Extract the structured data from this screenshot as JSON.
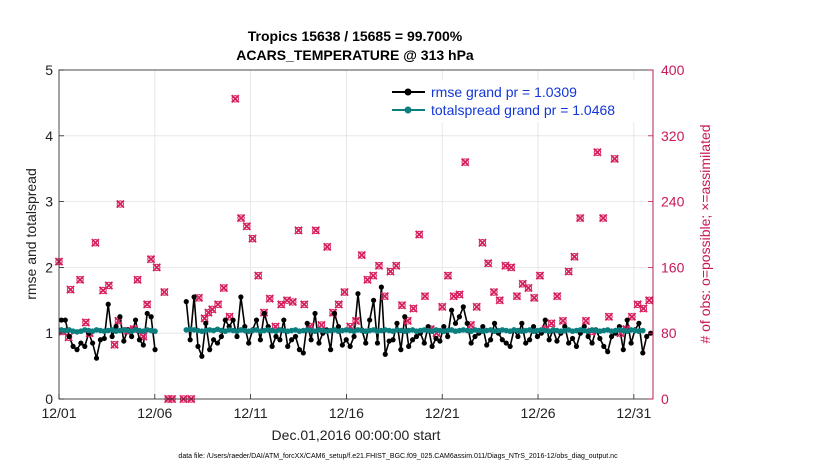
{
  "chart_data": {
    "type": "line",
    "title_line1": "Tropics 15638 / 15685 = 99.700%",
    "title_line2": "ACARS_TEMPERATURE @ 313 hPa",
    "xlabel": "Dec.01,2016 00:00:00 start",
    "ylabel_left": "rmse and totalspread",
    "ylabel_right": "# of obs: o=possible; ×=assimilated",
    "footer": "data file: /Users/raeder/DAI/ATM_forcXX/CAM6_setup/f.e21.FHIST_BGC.f09_025.CAM6assim.011/Diags_NTrS_2016-12/obs_diag_output.nc",
    "x_range": [
      1,
      32
    ],
    "x_ticks": [
      1,
      6,
      11,
      16,
      21,
      26,
      31
    ],
    "x_tick_labels": [
      "12/01",
      "12/06",
      "12/11",
      "12/16",
      "12/21",
      "12/26",
      "12/31"
    ],
    "ylim_left": [
      0,
      5
    ],
    "y_ticks_left": [
      "0",
      "1",
      "2",
      "3",
      "4",
      "5"
    ],
    "ylim_right": [
      0,
      400
    ],
    "y_ticks_right": [
      "0",
      "80",
      "160",
      "240",
      "320",
      "400"
    ],
    "legend": [
      "rmse grand pr = 1.0309",
      "totalspread grand pr = 1.0468"
    ],
    "colors": {
      "rmse": "#000000",
      "spread": "#0b7f7f",
      "obs": "#d6205e",
      "right_axis": "#c8185a",
      "legend_text": "#1236d8"
    },
    "rmse": [
      1.2,
      1.2,
      0.95,
      0.8,
      0.75,
      0.85,
      0.8,
      1.0,
      0.85,
      0.62,
      0.9,
      0.92,
      1.44,
      0.95,
      1.1,
      1.25,
      0.88,
      1.05,
      0.95,
      1.2,
      0.9,
      0.82,
      1.3,
      1.25,
      0.75,
      null,
      null,
      null,
      null,
      null,
      null,
      null,
      1.48,
      0.9,
      1.55,
      0.8,
      0.65,
      1.15,
      0.75,
      0.9,
      0.85,
      0.95,
      1.2,
      1.1,
      1.2,
      0.95,
      1.55,
      1.1,
      0.85,
      1.05,
      1.2,
      0.9,
      1.3,
      1.1,
      0.8,
      0.95,
      0.9,
      1.2,
      0.8,
      0.9,
      0.95,
      0.75,
      0.7,
      1.15,
      0.9,
      1.3,
      0.85,
      1.0,
      1.05,
      0.75,
      1.3,
      1.1,
      0.82,
      0.9,
      0.8,
      0.95,
      1.6,
      1.05,
      0.85,
      1.2,
      1.5,
      0.85,
      1.7,
      0.68,
      0.88,
      0.9,
      1.15,
      0.75,
      1.25,
      0.8,
      0.9,
      0.95,
      1.0,
      0.85,
      1.1,
      0.8,
      0.92,
      0.88,
      1.1,
      0.95,
      1.35,
      1.15,
      1.25,
      1.4,
      1.15,
      0.85,
      0.95,
      1.0,
      1.1,
      0.82,
      0.9,
      1.15,
      1.0,
      0.9,
      0.85,
      0.8,
      1.05,
      0.95,
      1.15,
      0.85,
      0.9,
      1.1,
      0.95,
      1.0,
      1.2,
      0.9,
      1.05,
      0.88,
      1.0,
      1.1,
      0.85,
      0.92,
      0.8,
      1.0,
      1.1,
      0.95,
      0.85,
      1.05,
      0.92,
      0.8,
      0.72,
      0.95,
      1.0,
      1.1,
      0.75,
      1.2,
      0.85,
      1.05,
      1.15,
      0.7,
      0.95,
      1.0
    ],
    "spread": [
      1.05,
      1.04,
      1.05,
      1.03,
      1.02,
      1.03,
      1.05,
      1.04,
      1.03,
      1.05,
      1.04,
      1.03,
      1.04,
      1.05,
      1.03,
      1.04,
      1.05,
      1.04,
      1.03,
      1.05,
      1.04,
      1.03,
      1.05,
      1.04,
      1.03,
      null,
      null,
      null,
      null,
      null,
      null,
      null,
      1.05,
      1.06,
      1.05,
      1.04,
      1.03,
      1.04,
      1.05,
      1.04,
      1.06,
      1.04,
      1.03,
      1.05,
      1.04,
      1.03,
      1.05,
      1.04,
      1.03,
      1.04,
      1.05,
      1.03,
      1.04,
      1.05,
      1.04,
      1.03,
      1.05,
      1.04,
      1.03,
      1.04,
      1.05,
      1.03,
      1.04,
      1.05,
      1.04,
      1.03,
      1.05,
      1.04,
      1.03,
      1.04,
      1.05,
      1.03,
      1.04,
      1.05,
      1.04,
      1.03,
      1.05,
      1.04,
      1.03,
      1.04,
      1.05,
      1.03,
      1.04,
      1.05,
      1.04,
      1.03,
      1.05,
      1.04,
      1.03,
      1.04,
      1.05,
      1.03,
      1.04,
      1.05,
      1.04,
      1.03,
      1.05,
      1.04,
      1.03,
      1.04,
      1.05,
      1.03,
      1.04,
      1.05,
      1.04,
      1.03,
      1.05,
      1.04,
      1.03,
      1.04,
      1.05,
      1.03,
      1.04,
      1.05,
      1.04,
      1.03,
      1.05,
      1.04,
      1.03,
      1.04,
      1.05,
      1.03,
      1.04,
      1.05,
      1.04,
      1.03,
      1.05,
      1.04,
      1.03,
      1.04,
      1.05,
      1.03,
      1.04,
      1.05,
      1.04,
      1.03,
      1.05,
      1.04,
      1.03,
      1.04,
      1.05,
      1.03,
      1.04,
      1.05,
      1.04,
      1.03,
      1.05,
      1.04,
      1.03,
      1.04
    ],
    "obs_times": [
      1.0,
      1.2,
      1.5,
      1.6,
      2.1,
      2.4,
      2.6,
      2.9,
      3.3,
      3.6,
      3.9,
      4.1,
      4.2,
      4.6,
      4.9,
      5.1,
      5.4,
      5.6,
      5.8,
      6.1,
      6.5,
      6.7,
      6.9,
      7.5,
      7.9,
      8.3,
      8.6,
      8.8,
      9.0,
      9.3,
      9.6,
      9.9,
      10.2,
      10.5,
      10.8,
      11.1,
      11.4,
      11.7,
      12.0,
      12.3,
      12.6,
      12.9,
      13.2,
      13.5,
      13.8,
      14.1,
      14.4,
      14.7,
      15.0,
      15.3,
      15.6,
      15.9,
      16.2,
      16.5,
      16.8,
      17.1,
      17.4,
      17.7,
      18.0,
      18.3,
      18.6,
      18.9,
      19.2,
      19.5,
      19.8,
      20.1,
      20.4,
      20.7,
      21.0,
      21.3,
      21.6,
      21.9,
      22.2,
      22.5,
      22.8,
      23.1,
      23.4,
      23.7,
      24.0,
      24.3,
      24.6,
      24.9,
      25.2,
      25.5,
      25.8,
      26.1,
      26.4,
      26.7,
      27.0,
      27.3,
      27.6,
      27.9,
      28.2,
      28.5,
      28.8,
      29.1,
      29.4,
      29.7,
      30.0,
      30.3,
      30.6,
      30.9,
      31.2,
      31.5,
      31.8
    ],
    "obs_counts": [
      167,
      82,
      75,
      133,
      145,
      93,
      80,
      190,
      132,
      138,
      66,
      95,
      237,
      83,
      85,
      145,
      76,
      115,
      170,
      160,
      130,
      0,
      0,
      0,
      0,
      123,
      98,
      105,
      109,
      115,
      135,
      100,
      365,
      220,
      210,
      195,
      150,
      105,
      122,
      88,
      115,
      120,
      118,
      205,
      115,
      88,
      205,
      90,
      185,
      105,
      115,
      130,
      88,
      95,
      175,
      145,
      150,
      162,
      125,
      155,
      162,
      114,
      95,
      110,
      200,
      125,
      85,
      80,
      112,
      150,
      125,
      127,
      288,
      90,
      112,
      190,
      165,
      130,
      120,
      162,
      160,
      125,
      140,
      135,
      123,
      150,
      85,
      92,
      125,
      95,
      155,
      173,
      220,
      95,
      82,
      300,
      220,
      100,
      292,
      80,
      85,
      100,
      115,
      110,
      120
    ]
  }
}
